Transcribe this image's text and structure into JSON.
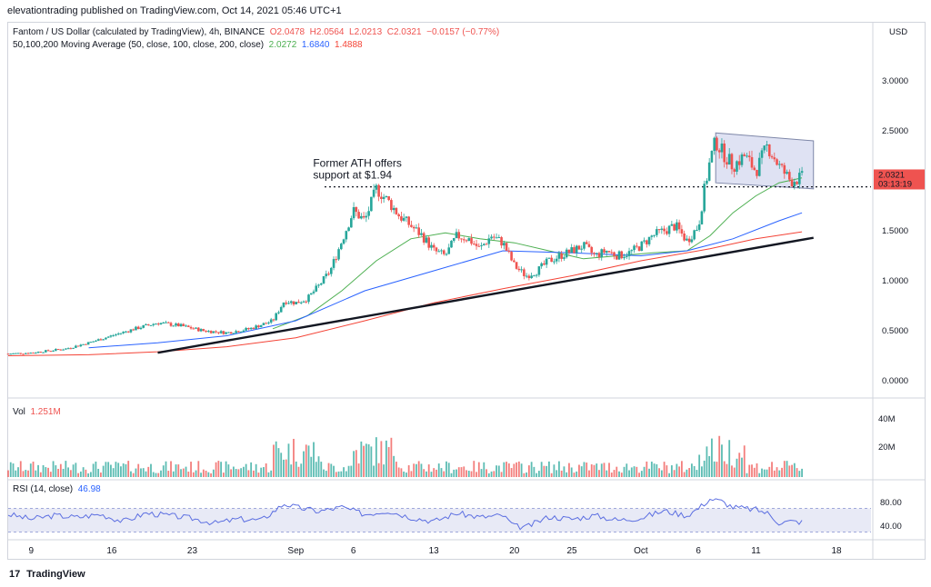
{
  "publisher_line": "elevationtrading published on TradingView.com, Oct 14, 2021 05:46 UTC+1",
  "legend": {
    "symbol": "Fantom / US Dollar (calculated by TradingView), 4h, BINANCE",
    "o": "O2.0478",
    "h": "H2.0564",
    "l": "L2.0213",
    "c": "C2.0321",
    "change": "−0.0157 (−0.77%)",
    "ma_label": "50,100,200 Moving Average (50, close, 100, close, 200, close)",
    "ma50": "2.0272",
    "ma100": "1.6840",
    "ma200": "1.4888"
  },
  "volume": {
    "label": "Vol",
    "value": "1.251M"
  },
  "rsi": {
    "label": "RSI (14, close)",
    "value": "46.98"
  },
  "annotation": {
    "line1": "Former ATH offers",
    "line2": "support at $1.94"
  },
  "price_tag": {
    "price": "2.0321",
    "countdown": "03:13:19"
  },
  "footer": {
    "brand": "TradingView",
    "logo_icon": "17"
  },
  "colors": {
    "up": "#26a69a",
    "down": "#ef5350",
    "ma50": "#4caf50",
    "ma100": "#2962ff",
    "ma200": "#f44336",
    "rsi": "#5b6ee1",
    "channel_fill": "#c5cae9"
  },
  "chart_data": {
    "type": "line",
    "currency_label": "USD",
    "y_ticks": [
      "3.0000",
      "2.5000",
      "2.0000",
      "1.5000",
      "1.0000",
      "0.5000",
      "0.0000"
    ],
    "ylim": [
      -0.1,
      3.3
    ],
    "x_tick_labels": [
      "9",
      "16",
      "23",
      "Sep",
      "6",
      "13",
      "20",
      "25",
      "Oct",
      "6",
      "11",
      "18"
    ],
    "x_tick_days": [
      9,
      16,
      23,
      32,
      37,
      44,
      51,
      56,
      62,
      67,
      72,
      79
    ],
    "x_domain_days": [
      7,
      82
    ],
    "day_index_note": "days since Aug 1, 2021",
    "series": [
      {
        "name": "FTM/USD close (approx)",
        "points": [
          [
            7,
            0.27
          ],
          [
            9,
            0.28
          ],
          [
            12,
            0.32
          ],
          [
            14,
            0.38
          ],
          [
            16,
            0.45
          ],
          [
            18,
            0.52
          ],
          [
            20,
            0.58
          ],
          [
            22,
            0.55
          ],
          [
            24,
            0.5
          ],
          [
            26,
            0.48
          ],
          [
            28,
            0.52
          ],
          [
            30,
            0.6
          ],
          [
            31,
            0.8
          ],
          [
            32,
            0.78
          ],
          [
            33,
            0.82
          ],
          [
            34,
            0.95
          ],
          [
            35,
            1.1
          ],
          [
            36,
            1.4
          ],
          [
            37,
            1.7
          ],
          [
            38,
            1.6
          ],
          [
            39,
            1.92
          ],
          [
            40,
            1.8
          ],
          [
            41,
            1.65
          ],
          [
            42,
            1.55
          ],
          [
            43,
            1.45
          ],
          [
            44,
            1.3
          ],
          [
            45,
            1.25
          ],
          [
            46,
            1.45
          ],
          [
            47,
            1.42
          ],
          [
            48,
            1.32
          ],
          [
            49,
            1.45
          ],
          [
            50,
            1.38
          ],
          [
            51,
            1.15
          ],
          [
            52,
            1.05
          ],
          [
            53,
            1.1
          ],
          [
            54,
            1.2
          ],
          [
            55,
            1.25
          ],
          [
            56,
            1.3
          ],
          [
            57,
            1.35
          ],
          [
            58,
            1.25
          ],
          [
            59,
            1.3
          ],
          [
            60,
            1.25
          ],
          [
            61,
            1.28
          ],
          [
            62,
            1.35
          ],
          [
            63,
            1.45
          ],
          [
            64,
            1.5
          ],
          [
            65,
            1.55
          ],
          [
            66,
            1.4
          ],
          [
            67,
            1.55
          ],
          [
            67.5,
            1.9
          ],
          [
            68,
            2.2
          ],
          [
            68.5,
            2.4
          ],
          [
            69,
            2.3
          ],
          [
            70,
            2.15
          ],
          [
            71,
            2.25
          ],
          [
            72,
            2.1
          ],
          [
            73,
            2.35
          ],
          [
            74,
            2.15
          ],
          [
            75,
            2.0
          ],
          [
            76,
            2.03
          ]
        ]
      },
      {
        "name": "MA 50",
        "points": [
          [
            30,
            0.52
          ],
          [
            33,
            0.65
          ],
          [
            36,
            0.9
          ],
          [
            39,
            1.2
          ],
          [
            42,
            1.42
          ],
          [
            45,
            1.48
          ],
          [
            48,
            1.42
          ],
          [
            51,
            1.38
          ],
          [
            54,
            1.3
          ],
          [
            57,
            1.22
          ],
          [
            60,
            1.25
          ],
          [
            63,
            1.28
          ],
          [
            66,
            1.3
          ],
          [
            68,
            1.45
          ],
          [
            70,
            1.68
          ],
          [
            72,
            1.85
          ],
          [
            74,
            1.98
          ],
          [
            76,
            2.03
          ]
        ]
      },
      {
        "name": "MA 100",
        "points": [
          [
            14,
            0.33
          ],
          [
            20,
            0.38
          ],
          [
            26,
            0.45
          ],
          [
            32,
            0.6
          ],
          [
            38,
            0.9
          ],
          [
            44,
            1.1
          ],
          [
            50,
            1.3
          ],
          [
            56,
            1.28
          ],
          [
            62,
            1.25
          ],
          [
            66,
            1.3
          ],
          [
            70,
            1.42
          ],
          [
            74,
            1.6
          ],
          [
            76,
            1.68
          ]
        ]
      },
      {
        "name": "MA 200",
        "points": [
          [
            7,
            0.25
          ],
          [
            14,
            0.26
          ],
          [
            20,
            0.29
          ],
          [
            26,
            0.34
          ],
          [
            32,
            0.43
          ],
          [
            38,
            0.6
          ],
          [
            44,
            0.78
          ],
          [
            50,
            0.92
          ],
          [
            56,
            1.05
          ],
          [
            62,
            1.2
          ],
          [
            68,
            1.32
          ],
          [
            72,
            1.42
          ],
          [
            76,
            1.49
          ]
        ]
      }
    ],
    "support_level": 1.94,
    "trendline": [
      [
        20,
        0.28
      ],
      [
        77,
        1.43
      ]
    ],
    "channel": {
      "upper": [
        [
          68.5,
          2.48
        ],
        [
          77,
          2.4
        ]
      ],
      "lower": [
        [
          68.5,
          1.98
        ],
        [
          77,
          1.92
        ]
      ]
    },
    "volume_ticks": [
      "40M",
      "20M"
    ],
    "rsi_ticks": [
      "80.00",
      "40.00"
    ],
    "rsi_points": [
      [
        7,
        60
      ],
      [
        9,
        52
      ],
      [
        11,
        58
      ],
      [
        13,
        55
      ],
      [
        15,
        60
      ],
      [
        17,
        48
      ],
      [
        19,
        62
      ],
      [
        21,
        58
      ],
      [
        23,
        53
      ],
      [
        25,
        45
      ],
      [
        27,
        52
      ],
      [
        29,
        50
      ],
      [
        31,
        78
      ],
      [
        32,
        72
      ],
      [
        34,
        65
      ],
      [
        36,
        72
      ],
      [
        38,
        60
      ],
      [
        40,
        66
      ],
      [
        42,
        55
      ],
      [
        44,
        48
      ],
      [
        46,
        62
      ],
      [
        48,
        55
      ],
      [
        50,
        58
      ],
      [
        51,
        40
      ],
      [
        52,
        38
      ],
      [
        54,
        56
      ],
      [
        56,
        52
      ],
      [
        58,
        58
      ],
      [
        60,
        50
      ],
      [
        62,
        54
      ],
      [
        64,
        66
      ],
      [
        66,
        58
      ],
      [
        67,
        70
      ],
      [
        68,
        86
      ],
      [
        69,
        82
      ],
      [
        70,
        72
      ],
      [
        72,
        68
      ],
      [
        73,
        62
      ],
      [
        74,
        46
      ],
      [
        75,
        48
      ],
      [
        76,
        47
      ]
    ]
  }
}
